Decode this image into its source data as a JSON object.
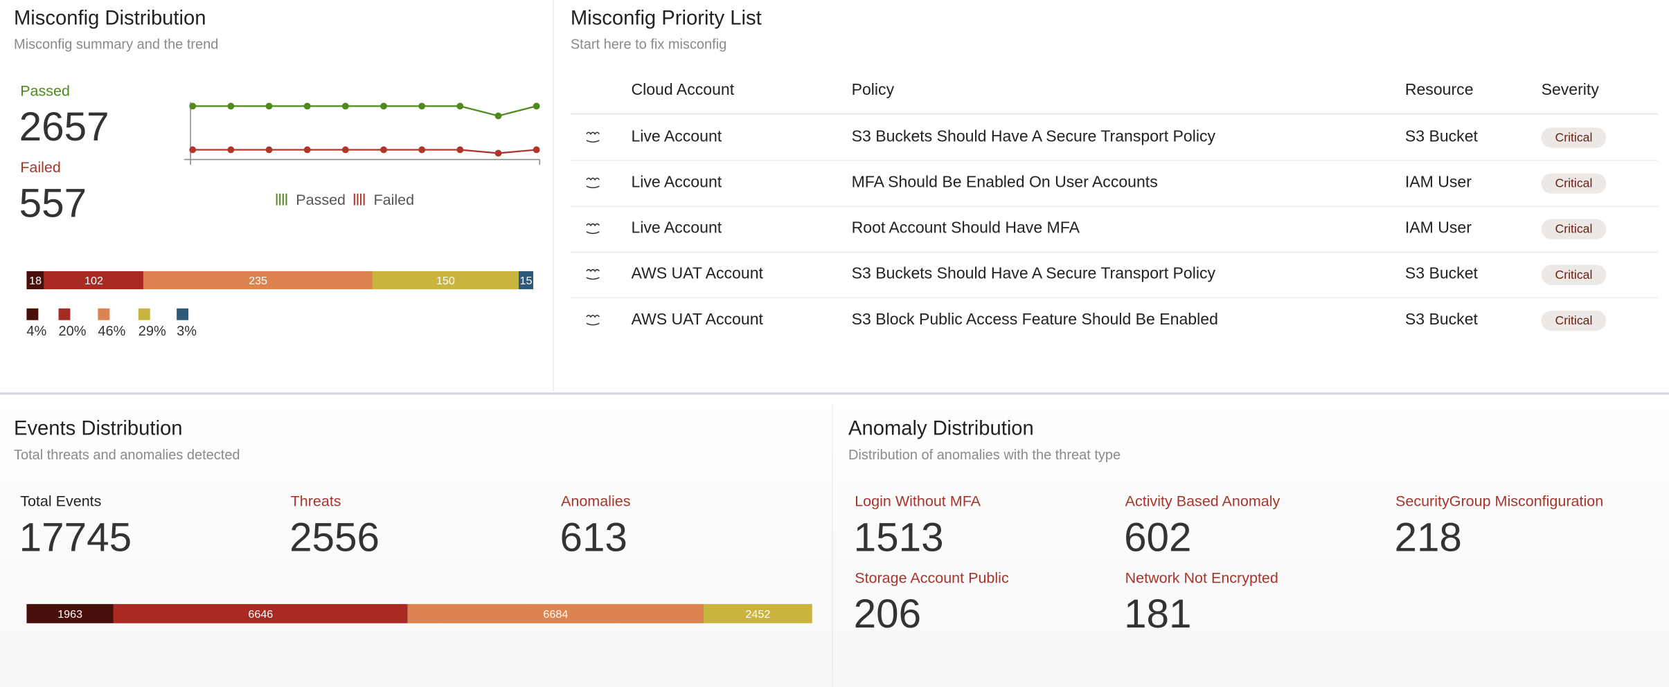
{
  "misconfig_distribution": {
    "title": "Misconfig Distribution",
    "subtitle": "Misconfig summary and the trend",
    "passed": {
      "label": "Passed",
      "value": 2657,
      "color": "#4e8a1e"
    },
    "failed": {
      "label": "Failed",
      "value": 557,
      "color": "#a8342b"
    },
    "trend": {
      "ylim": [
        0,
        100
      ],
      "series": [
        {
          "name": "Passed",
          "color": "#4e8a1e",
          "values": [
            93,
            93,
            93,
            93,
            93,
            93,
            93,
            93,
            76,
            93
          ]
        },
        {
          "name": "Failed",
          "color": "#b0352b",
          "values": [
            17,
            17,
            17,
            17,
            17,
            17,
            17,
            17,
            11,
            17
          ]
        }
      ]
    },
    "breakdown": [
      {
        "value": 18,
        "color": "#4a0e0a",
        "percent": "4%"
      },
      {
        "value": 102,
        "color": "#a82a22",
        "percent": "20%"
      },
      {
        "value": 235,
        "color": "#dc8350",
        "percent": "46%"
      },
      {
        "value": 150,
        "color": "#c9b440",
        "percent": "29%"
      },
      {
        "value": 15,
        "color": "#2c5a78",
        "percent": "3%"
      }
    ]
  },
  "priority_list": {
    "title": "Misconfig Priority List",
    "subtitle": "Start here to fix misconfig",
    "columns": [
      "Cloud Account",
      "Policy",
      "Resource",
      "Severity"
    ],
    "rows": [
      [
        "Live Account",
        "S3 Buckets Should Have A Secure Transport Policy",
        "S3 Bucket",
        "Critical"
      ],
      [
        "Live Account",
        "MFA Should Be Enabled On User Accounts",
        "IAM User",
        "Critical"
      ],
      [
        "Live Account",
        "Root Account Should Have MFA",
        "IAM User",
        "Critical"
      ],
      [
        "AWS UAT Account",
        "S3 Buckets Should Have A Secure Transport Policy",
        "S3 Bucket",
        "Critical"
      ],
      [
        "AWS UAT Account",
        "S3 Block Public Access Feature Should Be Enabled",
        "S3 Bucket",
        "Critical"
      ]
    ]
  },
  "events_distribution": {
    "title": "Events Distribution",
    "subtitle": "Total threats and anomalies detected",
    "stats": [
      {
        "label": "Total Events",
        "value": 17745,
        "color": "#222222"
      },
      {
        "label": "Threats",
        "value": 2556,
        "color": "#a8342b"
      },
      {
        "label": "Anomalies",
        "value": 613,
        "color": "#a8342b"
      }
    ],
    "breakdown": [
      {
        "value": 1963,
        "color": "#4a0e0a"
      },
      {
        "value": 6646,
        "color": "#a82a22"
      },
      {
        "value": 6684,
        "color": "#dc8350"
      },
      {
        "value": 2452,
        "color": "#c9b440"
      }
    ]
  },
  "anomaly_distribution": {
    "title": "Anomaly Distribution",
    "subtitle": "Distribution of anomalies with the threat type",
    "items": [
      {
        "label": "Login Without MFA",
        "value": 1513
      },
      {
        "label": "Activity Based Anomaly",
        "value": 602
      },
      {
        "label": "SecurityGroup Misconfiguration",
        "value": 218
      },
      {
        "label": "Storage Account Public",
        "value": 206
      },
      {
        "label": "Network Not Encrypted",
        "value": 181
      }
    ]
  }
}
